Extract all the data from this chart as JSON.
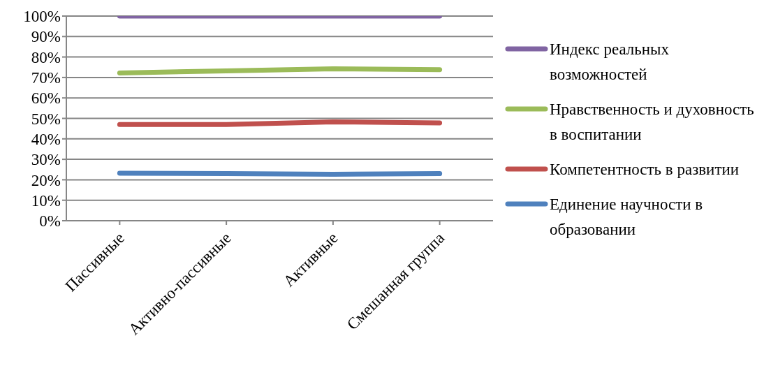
{
  "chart_data": {
    "type": "line",
    "categories": [
      "Пассивные",
      "Активно-пассивные",
      "Активные",
      "Смешанная группа"
    ],
    "series": [
      {
        "name": "Индекс реальных возможностей",
        "color": "#8064a2",
        "values": [
          100,
          100,
          100,
          100
        ]
      },
      {
        "name": "Нравственность и духовность в воспитании",
        "color": "#9bbb59",
        "values": [
          72.2,
          73.2,
          74.2,
          73.8
        ]
      },
      {
        "name": "Компетентность в развитии",
        "color": "#c0504d",
        "values": [
          47,
          47,
          48.3,
          47.8
        ]
      },
      {
        "name": "Единение научности в образовании",
        "color": "#4f81bd",
        "values": [
          23.2,
          23,
          22.7,
          23
        ]
      }
    ],
    "ylim": [
      0,
      100
    ],
    "yticks": [
      {
        "value": 0,
        "label": "0%"
      },
      {
        "value": 10,
        "label": "10%"
      },
      {
        "value": 20,
        "label": "20%"
      },
      {
        "value": 30,
        "label": "30%"
      },
      {
        "value": 40,
        "label": "40%"
      },
      {
        "value": 50,
        "label": "50%"
      },
      {
        "value": 60,
        "label": "60%"
      },
      {
        "value": 70,
        "label": "70%"
      },
      {
        "value": 80,
        "label": "80%"
      },
      {
        "value": 90,
        "label": "90%"
      },
      {
        "value": 100,
        "label": "100%"
      }
    ],
    "grid": "y",
    "legend": "right",
    "marker": "none",
    "line_style": "solid"
  }
}
